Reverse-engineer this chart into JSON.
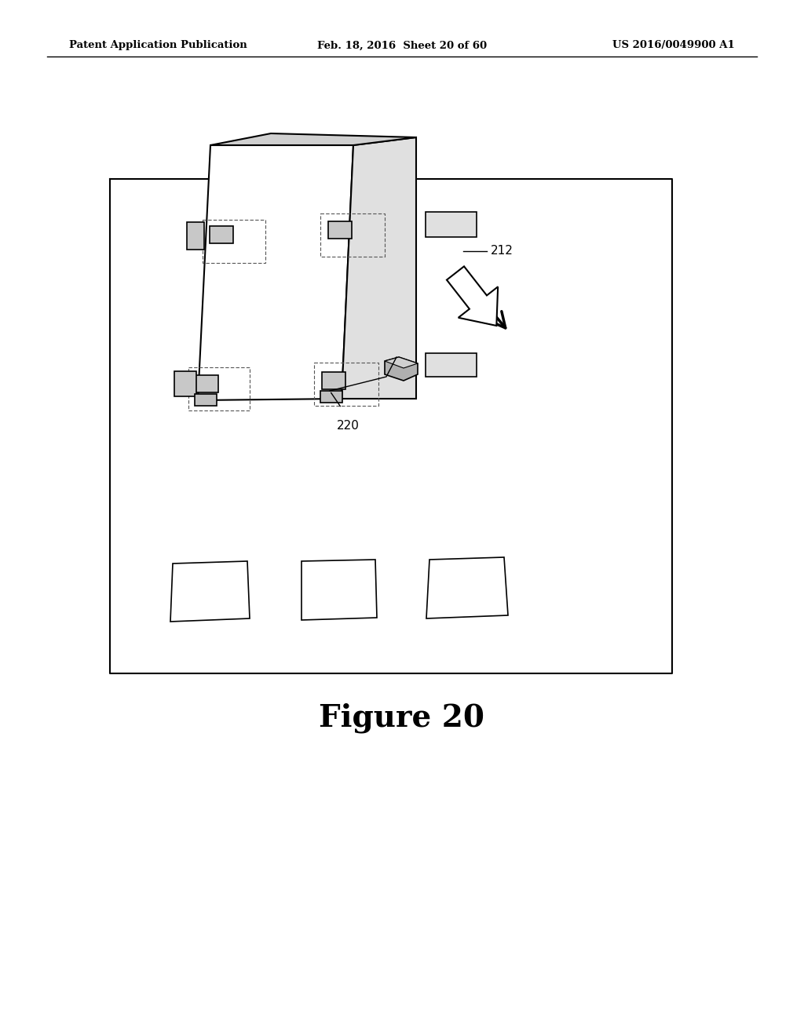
{
  "bg_color": "#ffffff",
  "fig_width": 10.24,
  "fig_height": 13.2,
  "header_left": "Patent Application Publication",
  "header_center": "Feb. 18, 2016  Sheet 20 of 60",
  "header_right": "US 2016/0049900 A1",
  "figure_label": "Figure 20",
  "label_212": "212",
  "label_220": "220"
}
